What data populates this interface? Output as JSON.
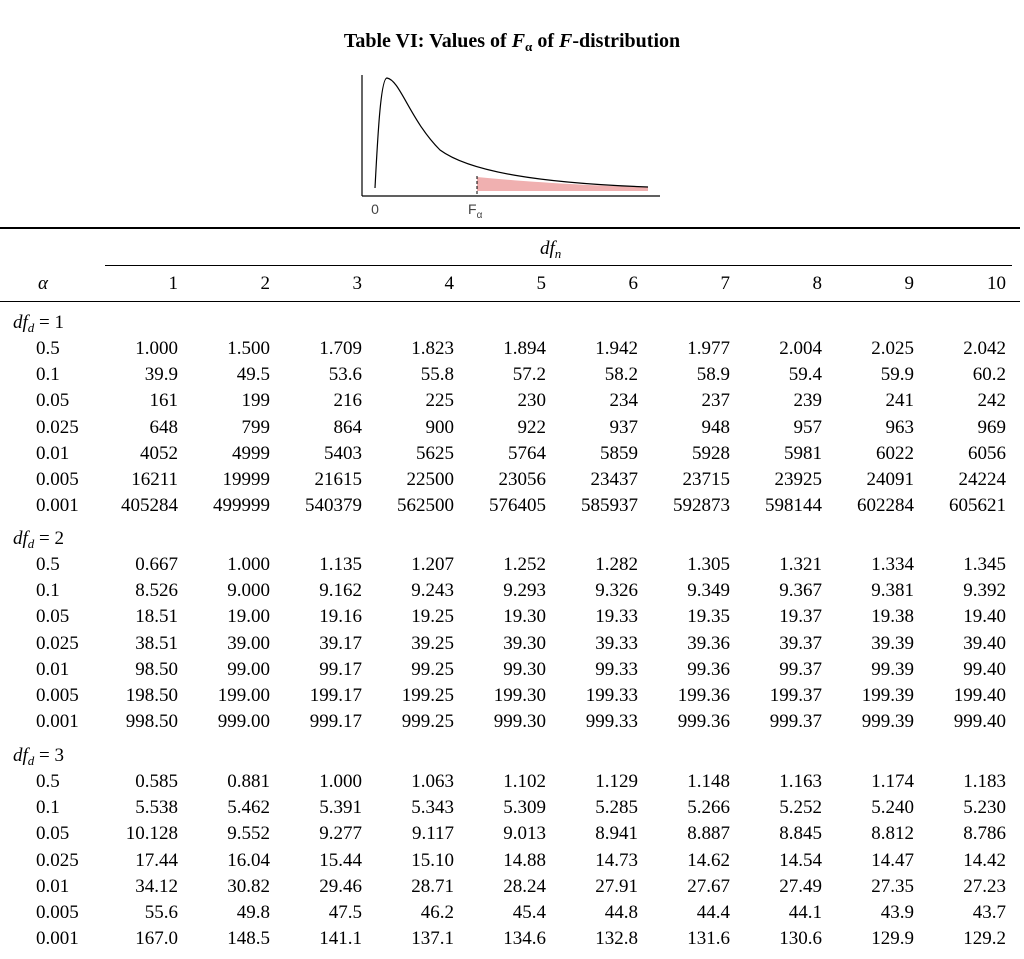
{
  "header": {
    "title": [
      "Table VI: Values of ",
      "F",
      "α",
      " of ",
      "F",
      "-distribution"
    ]
  },
  "figure": {
    "labels": [
      "0",
      "F",
      "α"
    ]
  },
  "table": {
    "column_group": [
      "df",
      "n"
    ],
    "row_header": "α",
    "columns": [
      "1",
      "2",
      "3",
      "4",
      "5",
      "6",
      "7",
      "8",
      "9",
      "10"
    ],
    "groups": [
      {
        "label": [
          "df",
          "d",
          " = 1"
        ],
        "rows": [
          [
            "0.5",
            "1.000",
            "1.500",
            "1.709",
            "1.823",
            "1.894",
            "1.942",
            "1.977",
            "2.004",
            "2.025",
            "2.042"
          ],
          [
            "0.1",
            "39.9",
            "49.5",
            "53.6",
            "55.8",
            "57.2",
            "58.2",
            "58.9",
            "59.4",
            "59.9",
            "60.2"
          ],
          [
            "0.05",
            "161",
            "199",
            "216",
            "225",
            "230",
            "234",
            "237",
            "239",
            "241",
            "242"
          ],
          [
            "0.025",
            "648",
            "799",
            "864",
            "900",
            "922",
            "937",
            "948",
            "957",
            "963",
            "969"
          ],
          [
            "0.01",
            "4052",
            "4999",
            "5403",
            "5625",
            "5764",
            "5859",
            "5928",
            "5981",
            "6022",
            "6056"
          ],
          [
            "0.005",
            "16211",
            "19999",
            "21615",
            "22500",
            "23056",
            "23437",
            "23715",
            "23925",
            "24091",
            "24224"
          ],
          [
            "0.001",
            "405284",
            "499999",
            "540379",
            "562500",
            "576405",
            "585937",
            "592873",
            "598144",
            "602284",
            "605621"
          ]
        ]
      },
      {
        "label": [
          "df",
          "d",
          " = 2"
        ],
        "rows": [
          [
            "0.5",
            "0.667",
            "1.000",
            "1.135",
            "1.207",
            "1.252",
            "1.282",
            "1.305",
            "1.321",
            "1.334",
            "1.345"
          ],
          [
            "0.1",
            "8.526",
            "9.000",
            "9.162",
            "9.243",
            "9.293",
            "9.326",
            "9.349",
            "9.367",
            "9.381",
            "9.392"
          ],
          [
            "0.05",
            "18.51",
            "19.00",
            "19.16",
            "19.25",
            "19.30",
            "19.33",
            "19.35",
            "19.37",
            "19.38",
            "19.40"
          ],
          [
            "0.025",
            "38.51",
            "39.00",
            "39.17",
            "39.25",
            "39.30",
            "39.33",
            "39.36",
            "39.37",
            "39.39",
            "39.40"
          ],
          [
            "0.01",
            "98.50",
            "99.00",
            "99.17",
            "99.25",
            "99.30",
            "99.33",
            "99.36",
            "99.37",
            "99.39",
            "99.40"
          ],
          [
            "0.005",
            "198.50",
            "199.00",
            "199.17",
            "199.25",
            "199.30",
            "199.33",
            "199.36",
            "199.37",
            "199.39",
            "199.40"
          ],
          [
            "0.001",
            "998.50",
            "999.00",
            "999.17",
            "999.25",
            "999.30",
            "999.33",
            "999.36",
            "999.37",
            "999.39",
            "999.40"
          ]
        ]
      },
      {
        "label": [
          "df",
          "d",
          " = 3"
        ],
        "rows": [
          [
            "0.5",
            "0.585",
            "0.881",
            "1.000",
            "1.063",
            "1.102",
            "1.129",
            "1.148",
            "1.163",
            "1.174",
            "1.183"
          ],
          [
            "0.1",
            "5.538",
            "5.462",
            "5.391",
            "5.343",
            "5.309",
            "5.285",
            "5.266",
            "5.252",
            "5.240",
            "5.230"
          ],
          [
            "0.05",
            "10.128",
            "9.552",
            "9.277",
            "9.117",
            "9.013",
            "8.941",
            "8.887",
            "8.845",
            "8.812",
            "8.786"
          ],
          [
            "0.025",
            "17.44",
            "16.04",
            "15.44",
            "15.10",
            "14.88",
            "14.73",
            "14.62",
            "14.54",
            "14.47",
            "14.42"
          ],
          [
            "0.01",
            "34.12",
            "30.82",
            "29.46",
            "28.71",
            "28.24",
            "27.91",
            "27.67",
            "27.49",
            "27.35",
            "27.23"
          ],
          [
            "0.005",
            "55.6",
            "49.8",
            "47.5",
            "46.2",
            "45.4",
            "44.8",
            "44.4",
            "44.1",
            "43.9",
            "43.7"
          ],
          [
            "0.001",
            "167.0",
            "148.5",
            "141.1",
            "137.1",
            "134.6",
            "132.8",
            "131.6",
            "130.6",
            "129.9",
            "129.2"
          ]
        ]
      }
    ]
  }
}
